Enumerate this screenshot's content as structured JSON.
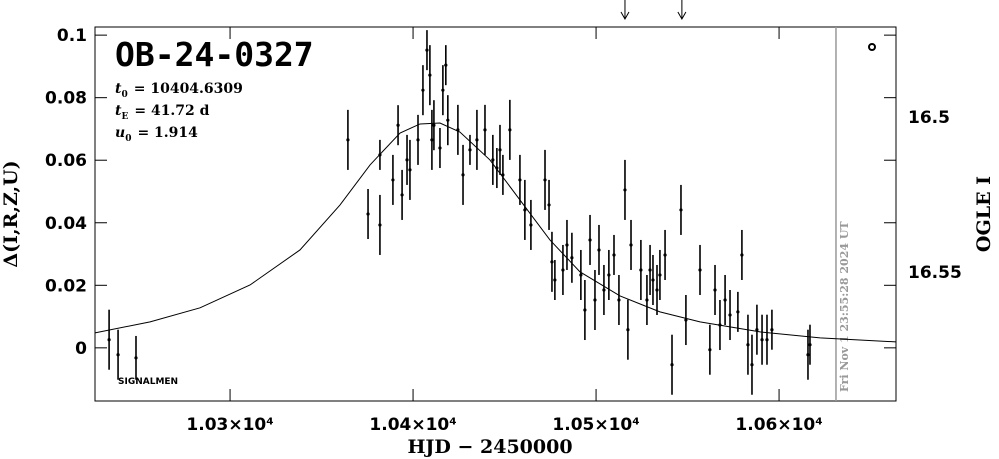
{
  "chart_data": {
    "type": "scatter",
    "title": "OB-24-0327",
    "annotations": [
      {
        "symbol": "t",
        "sub": "0",
        "text": "= 10404.6309"
      },
      {
        "symbol": "t",
        "sub": "E",
        "text": "= 41.72 d"
      },
      {
        "symbol": "u",
        "sub": "0",
        "text": "= 1.914"
      }
    ],
    "footnote": "SIGNALMEN",
    "timestamp": "Fri Nov  1 23:55:28 2024 UT",
    "timestamp_x": 10631.1,
    "arrows_x": [
      10515.8,
      10546.9
    ],
    "x_label": "HJD − 2450000",
    "y_label": "Δ(I,R,Z,U)",
    "y2_label": "OGLE I",
    "xlim": [
      10226.2,
      10663.9
    ],
    "ylim": [
      -0.017,
      0.1026
    ],
    "y2lim": [
      16.5916,
      16.471
    ],
    "xticks": [
      {
        "value": 10300,
        "label": "1.03×10⁴"
      },
      {
        "value": 10400,
        "label": "1.04×10⁴"
      },
      {
        "value": 10500,
        "label": "1.05×10⁴"
      },
      {
        "value": 10600,
        "label": "1.06×10⁴"
      }
    ],
    "yticks": [
      0,
      0.02,
      0.04,
      0.06,
      0.08,
      0.1
    ],
    "y2ticks": [
      16.5,
      16.55
    ],
    "color": "#000000",
    "x": [
      10233.9,
      10238.8,
      10248.6,
      10364.4,
      10375.4,
      10381.9,
      10381.9,
      10389.0,
      10391.8,
      10394.0,
      10396.7,
      10398.3,
      10402.7,
      10405.4,
      10407.6,
      10409.2,
      10410.3,
      10411.4,
      10414.7,
      10416.3,
      10417.9,
      10419.0,
      10424.5,
      10427.3,
      10431.1,
      10434.9,
      10439.3,
      10443.6,
      10445.8,
      10447.5,
      10449.1,
      10452.9,
      10458.4,
      10461.1,
      10464.4,
      10472.1,
      10474.3,
      10475.9,
      10477.5,
      10481.9,
      10484.1,
      10486.8,
      10491.7,
      10493.9,
      10496.7,
      10499.4,
      10501.6,
      10504.3,
      10507.0,
      10509.8,
      10512.5,
      10515.8,
      10517.4,
      10519.1,
      10524.5,
      10527.8,
      10529.5,
      10531.1,
      10533.3,
      10534.9,
      10537.7,
      10541.5,
      10546.4,
      10549.1,
      10556.8,
      10562.2,
      10565.0,
      10567.7,
      10570.5,
      10573.2,
      10577.5,
      10579.7,
      10583.0,
      10585.2,
      10587.9,
      10590.7,
      10593.4,
      10596.1,
      10615.8,
      10616.9
    ],
    "values": [
      0.0026,
      -0.0022,
      -0.0032,
      0.0665,
      0.0428,
      0.0393,
      0.0617,
      0.0537,
      0.0712,
      0.0489,
      0.0601,
      0.0569,
      0.0665,
      0.0824,
      0.0952,
      0.0872,
      0.0665,
      0.0712,
      0.0639,
      0.0824,
      0.0904,
      0.0728,
      0.0697,
      0.0553,
      0.0633,
      0.0665,
      0.0697,
      0.0601,
      0.0575,
      0.0633,
      0.0553,
      0.0697,
      0.0537,
      0.0441,
      0.0393,
      0.0537,
      0.0457,
      0.0275,
      0.0217,
      0.0249,
      0.0329,
      0.0288,
      0.0233,
      0.0121,
      0.0345,
      0.0153,
      0.0313,
      0.0185,
      0.0233,
      0.0297,
      0.0153,
      0.0505,
      0.0058,
      0.0329,
      0.0249,
      0.0153,
      0.0249,
      0.0217,
      0.0185,
      0.0233,
      0.0297,
      -0.0054,
      0.0441,
      0.0089,
      0.0249,
      -0.0006,
      0.0185,
      0.0073,
      0.0153,
      0.0105,
      0.0115,
      0.0297,
      0.001,
      -0.0054,
      0.0058,
      0.0026,
      0.0026,
      0.0058,
      -0.0022,
      0.001
    ],
    "errors": [
      0.0096,
      0.008,
      0.007,
      0.0096,
      0.008,
      0.0096,
      0.0048,
      0.008,
      0.0064,
      0.008,
      0.008,
      0.0096,
      0.008,
      0.008,
      0.0064,
      0.0096,
      0.0096,
      0.008,
      0.0064,
      0.008,
      0.0064,
      0.008,
      0.008,
      0.0096,
      0.0048,
      0.0096,
      0.008,
      0.008,
      0.0064,
      0.008,
      0.0064,
      0.0096,
      0.008,
      0.0096,
      0.008,
      0.0096,
      0.008,
      0.0096,
      0.0064,
      0.008,
      0.008,
      0.008,
      0.008,
      0.0096,
      0.008,
      0.0096,
      0.008,
      0.008,
      0.008,
      0.0064,
      0.008,
      0.0096,
      0.0096,
      0.008,
      0.0096,
      0.008,
      0.008,
      0.008,
      0.008,
      0.008,
      0.008,
      0.0096,
      0.008,
      0.008,
      0.008,
      0.008,
      0.008,
      0.008,
      0.008,
      0.008,
      0.0064,
      0.008,
      0.0096,
      0.0096,
      0.008,
      0.008,
      0.008,
      0.0064,
      0.008,
      0.0064
    ],
    "model": {
      "x": [
        10226.2,
        10256.3,
        10283.6,
        10310.9,
        10338.2,
        10360.1,
        10376.5,
        10392.9,
        10403.8,
        10414.7,
        10425.6,
        10442.0,
        10458.4,
        10474.8,
        10491.2,
        10513.1,
        10534.9,
        10556.8,
        10589.6,
        10622.4,
        10663.9
      ],
      "values": [
        0.0048,
        0.0083,
        0.0128,
        0.0201,
        0.0313,
        0.0457,
        0.0585,
        0.0687,
        0.0716,
        0.0719,
        0.069,
        0.0601,
        0.0473,
        0.0345,
        0.0243,
        0.0166,
        0.0115,
        0.0083,
        0.0051,
        0.0032,
        0.0019
      ]
    }
  }
}
